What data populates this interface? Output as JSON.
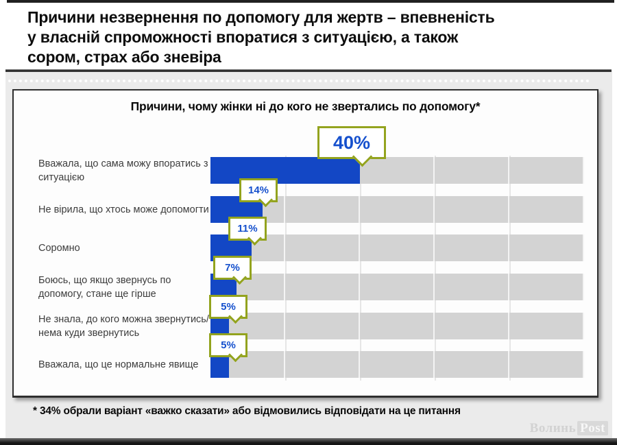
{
  "header": {
    "title": "Причини незвернення по допомогу для жертв – впевненість у власній спроможності впоратися з ситуацією, а також сором, страх або зневіра"
  },
  "chart_data": {
    "type": "bar",
    "orientation": "horizontal",
    "title": "Причини, чому жінки ні до кого не звертались по допомогу*",
    "categories": [
      "Вважала, що сама можу впоратись з ситуацією",
      "Не вірила, що хтось може допомогти",
      "Соромно",
      "Боюсь, що якщо звернусь по допомогу, стане ще гірше",
      "Не знала, до кого можна звернутись/нема куди звернутись",
      "Вважала, що це нормальне явище"
    ],
    "values": [
      40,
      14,
      11,
      7,
      5,
      5
    ],
    "value_labels": [
      "40%",
      "14%",
      "11%",
      "7%",
      "5%",
      "5%"
    ],
    "unit": "%",
    "xlim": [
      0,
      100
    ],
    "grid": "faint vertical lines every 20%",
    "legend": false,
    "bar_color": "#1347c5",
    "track_color": "#d3d3d3",
    "callout_border_color": "#93a31e",
    "callout_text_color": "#1550cd",
    "slide_background": "#ebebeb"
  },
  "footnote": {
    "text": "* 34% обрали варіант «важко сказати» або відмовились відповідати на це питання"
  },
  "watermark": {
    "name": "ВолиньPost",
    "part1": "Волинь",
    "part2": "Post"
  }
}
